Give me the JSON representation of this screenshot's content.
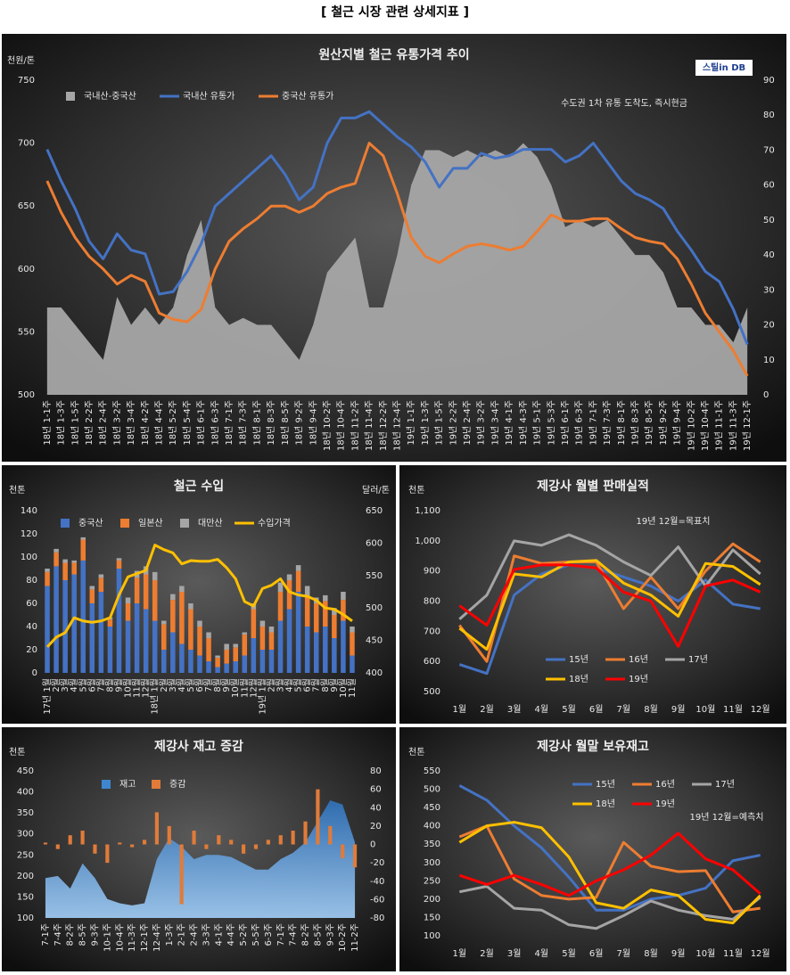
{
  "page_title": "[ 철근 시장 관련 상세지표 ]",
  "chart_data": [
    {
      "type": "combo",
      "title": "원산지별 철근 유통가격 추이",
      "ylabel": "천원/톤",
      "annotations": [
        "수도권 1차 유통 도착도, 즉시현금",
        "스틸in DB"
      ],
      "categories": [
        "18년 1-1주",
        "18년 1-3주",
        "18년 1-5주",
        "18년 2-2주",
        "18년 2-4주",
        "18년 3-2주",
        "18년 3-4주",
        "18년 4-2주",
        "18년 4-4주",
        "18년 5-2주",
        "18년 5-4주",
        "18년 6-1주",
        "18년 6-3주",
        "18년 7-1주",
        "18년 7-3주",
        "18년 8-1주",
        "18년 8-3주",
        "18년 8-5주",
        "18년 9-2주",
        "18년 9-4주",
        "18년 10-2주",
        "18년 10-4주",
        "18년 11-2주",
        "18년 11-4주",
        "18년 12-2주",
        "18년 12-4주",
        "19년 1-1주",
        "19년 1-3주",
        "19년 1-5주",
        "19년 2-2주",
        "19년 2-4주",
        "19년 3-2주",
        "19년 3-4주",
        "19년 4-1주",
        "19년 4-3주",
        "19년 5-1주",
        "19년 5-3주",
        "19년 6-1주",
        "19년 6-3주",
        "19년 7-1주",
        "19년 7-3주",
        "19년 8-1주",
        "19년 8-3주",
        "19년 8-5주",
        "19년 9-2주",
        "19년 9-4주",
        "19년 10-2주",
        "19년 10-4주",
        "19년 11-1주",
        "19년 11-3주",
        "19년 12-1주"
      ],
      "series": [
        {
          "name": "국내산-중국산",
          "color": "#a6a6a6",
          "kind": "area",
          "axis": "y2",
          "values": [
            25,
            25,
            20,
            15,
            10,
            28,
            20,
            25,
            20,
            25,
            40,
            50,
            25,
            20,
            22,
            20,
            20,
            15,
            10,
            20,
            35,
            40,
            45,
            25,
            25,
            40,
            60,
            70,
            70,
            68,
            70,
            68,
            70,
            68,
            72,
            68,
            60,
            48,
            50,
            48,
            50,
            45,
            40,
            40,
            35,
            25,
            25,
            20,
            20,
            15,
            25
          ]
        },
        {
          "name": "국내산 유통가",
          "color": "#4472c4",
          "kind": "line",
          "values": [
            695,
            670,
            648,
            622,
            608,
            628,
            615,
            612,
            580,
            582,
            598,
            620,
            650,
            660,
            670,
            680,
            690,
            675,
            655,
            665,
            700,
            720,
            720,
            725,
            715,
            705,
            697,
            685,
            665,
            680,
            680,
            692,
            688,
            690,
            695,
            695,
            695,
            685,
            690,
            700,
            685,
            670,
            660,
            655,
            648,
            630,
            615,
            598,
            590,
            568,
            540
          ]
        },
        {
          "name": "중국산 유통가",
          "color": "#ed7d31",
          "kind": "line",
          "values": [
            670,
            645,
            625,
            610,
            600,
            588,
            595,
            590,
            565,
            560,
            558,
            568,
            600,
            622,
            632,
            640,
            650,
            650,
            645,
            650,
            660,
            665,
            668,
            700,
            690,
            660,
            625,
            610,
            605,
            612,
            618,
            620,
            618,
            615,
            618,
            630,
            643,
            638,
            638,
            640,
            640,
            632,
            625,
            622,
            620,
            608,
            588,
            565,
            550,
            535,
            515
          ]
        }
      ],
      "ylim": [
        500,
        750
      ],
      "yticks": [
        500,
        550,
        600,
        650,
        700,
        750
      ],
      "y2lim": [
        0,
        90
      ],
      "y2ticks": [
        0,
        10,
        20,
        30,
        40,
        50,
        60,
        70,
        80,
        90
      ],
      "grid": false,
      "legend": "top-left"
    },
    {
      "type": "combo",
      "title": "철근 수입",
      "ylabel": "천톤",
      "y2label": "달러/톤",
      "stacked": true,
      "categories": [
        "17년 1월",
        "2월",
        "3월",
        "4월",
        "5월",
        "6월",
        "7월",
        "8월",
        "9월",
        "10월",
        "11월",
        "12월",
        "18년 1월",
        "2월",
        "3월",
        "4월",
        "5월",
        "6월",
        "7월",
        "8월",
        "9월",
        "10월",
        "11월",
        "12월",
        "19년 1월",
        "2월",
        "3월",
        "4월",
        "5월",
        "6월",
        "7월",
        "8월",
        "9월",
        "10월",
        "11월"
      ],
      "series": [
        {
          "name": "중국산",
          "color": "#4472c4",
          "kind": "bar",
          "values": [
            75,
            92,
            80,
            85,
            97,
            60,
            70,
            40,
            90,
            45,
            60,
            55,
            45,
            20,
            35,
            25,
            20,
            15,
            10,
            5,
            8,
            10,
            15,
            30,
            20,
            20,
            45,
            55,
            70,
            40,
            35,
            40,
            30,
            45,
            15
          ]
        },
        {
          "name": "일본산",
          "color": "#ed7d31",
          "kind": "bar",
          "values": [
            12,
            12,
            15,
            10,
            18,
            12,
            12,
            6,
            7,
            15,
            22,
            30,
            35,
            22,
            28,
            45,
            35,
            25,
            20,
            8,
            12,
            12,
            18,
            25,
            20,
            15,
            25,
            25,
            18,
            25,
            25,
            22,
            20,
            18,
            20
          ]
        },
        {
          "name": "대만산",
          "color": "#a5a5a5",
          "kind": "bar",
          "values": [
            3,
            3,
            3,
            2,
            2,
            3,
            3,
            2,
            2,
            5,
            6,
            7,
            7,
            3,
            5,
            5,
            5,
            5,
            5,
            2,
            5,
            3,
            2,
            5,
            5,
            5,
            8,
            5,
            5,
            10,
            5,
            5,
            6,
            7,
            5
          ]
        },
        {
          "name": "수입가격",
          "color": "#ffc000",
          "kind": "line",
          "axis": "y2",
          "values": [
            440,
            455,
            462,
            485,
            480,
            478,
            480,
            485,
            520,
            548,
            553,
            558,
            597,
            590,
            585,
            568,
            573,
            572,
            572,
            575,
            562,
            545,
            510,
            503,
            530,
            535,
            545,
            525,
            520,
            518,
            512,
            500,
            498,
            490,
            480
          ]
        }
      ],
      "ylim": [
        0,
        140
      ],
      "yticks": [
        0,
        20,
        40,
        60,
        80,
        100,
        120,
        140
      ],
      "y2lim": [
        400,
        650
      ],
      "y2ticks": [
        400,
        450,
        500,
        550,
        600,
        650
      ],
      "grid": false,
      "legend": "top-left"
    },
    {
      "type": "line",
      "title": "제강사 월별 판매실적",
      "ylabel": "천톤",
      "annotations": [
        "19년 12월=목표치"
      ],
      "categories": [
        "1월",
        "2월",
        "3월",
        "4월",
        "5월",
        "6월",
        "7월",
        "8월",
        "9월",
        "10월",
        "11월",
        "12월"
      ],
      "series": [
        {
          "name": "15년",
          "color": "#4472c4",
          "values": [
            590,
            560,
            820,
            890,
            920,
            910,
            880,
            850,
            800,
            870,
            790,
            775
          ]
        },
        {
          "name": "16년",
          "color": "#ed7d31",
          "values": [
            720,
            600,
            950,
            925,
            930,
            930,
            775,
            880,
            775,
            900,
            990,
            930
          ]
        },
        {
          "name": "17년",
          "color": "#a5a5a5",
          "values": [
            740,
            820,
            1000,
            985,
            1020,
            985,
            930,
            885,
            980,
            850,
            970,
            890
          ]
        },
        {
          "name": "18년",
          "color": "#ffc000",
          "values": [
            710,
            640,
            890,
            880,
            930,
            935,
            860,
            820,
            750,
            925,
            915,
            855
          ]
        },
        {
          "name": "19년",
          "color": "#ff0000",
          "values": [
            785,
            720,
            905,
            920,
            920,
            910,
            830,
            800,
            650,
            850,
            870,
            830
          ]
        }
      ],
      "ylim": [
        500,
        1100
      ],
      "yticks": [
        500,
        600,
        700,
        800,
        900,
        {
          "value": 1000,
          "label": "1,000"
        },
        {
          "value": 1100,
          "label": "1,100"
        }
      ],
      "grid": false,
      "legend": "bottom-left"
    },
    {
      "type": "combo",
      "title": "제강사 재고 증감",
      "ylabel": "천톤",
      "categories": [
        "7-1주",
        "7-4주",
        "8-2주",
        "8-5주",
        "9-3주",
        "10-1주",
        "10-4주",
        "11-3주",
        "12-1주",
        "12-4주",
        "1-3주",
        "2-1주",
        "2-4주",
        "3-3주",
        "4-1주",
        "4-4주",
        "5-2주",
        "5-5주",
        "6-3주",
        "7-1주",
        "7-4주",
        "8-2주",
        "8-5주",
        "9-3주",
        "10-2주",
        "11-2주"
      ],
      "series": [
        {
          "name": "재고",
          "color": "#3f86d0",
          "kind": "area",
          "values": [
            195,
            200,
            170,
            230,
            195,
            145,
            135,
            130,
            135,
            240,
            290,
            270,
            240,
            250,
            250,
            245,
            230,
            215,
            215,
            240,
            255,
            280,
            330,
            380,
            370,
            280
          ]
        },
        {
          "name": "증감",
          "color": "#e07b39",
          "kind": "bar",
          "axis": "y2",
          "values": [
            2,
            -5,
            10,
            15,
            -10,
            -20,
            2,
            -3,
            5,
            35,
            20,
            -65,
            15,
            -5,
            10,
            5,
            -10,
            -5,
            5,
            10,
            15,
            25,
            60,
            20,
            -15,
            -25
          ]
        }
      ],
      "ylim": [
        100,
        450
      ],
      "yticks": [
        100,
        150,
        200,
        250,
        300,
        350,
        400,
        450
      ],
      "y2lim": [
        -80,
        80
      ],
      "y2ticks": [
        -80,
        -60,
        -40,
        -20,
        0,
        20,
        40,
        60,
        80
      ],
      "grid": false,
      "legend": "top-left"
    },
    {
      "type": "line",
      "title": "제강사 월말 보유재고",
      "ylabel": "천톤",
      "annotations": [
        "19년 12월=예측치"
      ],
      "categories": [
        "1월",
        "2월",
        "3월",
        "4월",
        "5월",
        "6월",
        "7월",
        "8월",
        "9월",
        "10월",
        "11월",
        "12월"
      ],
      "series": [
        {
          "name": "15년",
          "color": "#4472c4",
          "values": [
            510,
            470,
            400,
            340,
            260,
            170,
            170,
            200,
            210,
            230,
            305,
            320
          ]
        },
        {
          "name": "16년",
          "color": "#ed7d31",
          "values": [
            370,
            400,
            255,
            210,
            200,
            205,
            355,
            290,
            275,
            278,
            165,
            175
          ]
        },
        {
          "name": "17년",
          "color": "#a5a5a5",
          "values": [
            220,
            235,
            175,
            170,
            130,
            120,
            155,
            195,
            170,
            155,
            145,
            205
          ]
        },
        {
          "name": "18년",
          "color": "#ffc000",
          "values": [
            355,
            400,
            410,
            395,
            315,
            190,
            175,
            225,
            210,
            145,
            135,
            210
          ]
        },
        {
          "name": "19년",
          "color": "#ff0000",
          "values": [
            265,
            240,
            265,
            240,
            210,
            250,
            280,
            320,
            380,
            310,
            280,
            215
          ]
        }
      ],
      "ylim": [
        100,
        550
      ],
      "yticks": [
        100,
        150,
        200,
        250,
        300,
        350,
        400,
        450,
        500,
        550
      ],
      "grid": false,
      "legend": "top-right"
    }
  ]
}
